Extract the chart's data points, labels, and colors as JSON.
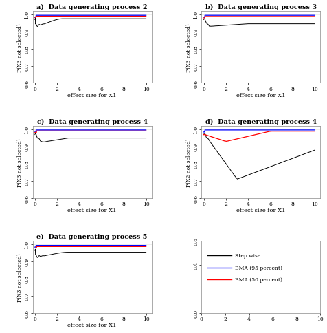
{
  "titles": [
    "a)  Data generating process 2",
    "b)  Data generating process 3",
    "c)  Data generating process 4",
    "d)  Data generating process 4",
    "e)  Data generating process 5"
  ],
  "ylabels": [
    "P(X3 not selected)",
    "P(X3 not selected)",
    "P(X3 not selected)",
    "P(X2 not selected)",
    "P(X3 not selected)"
  ],
  "xlabel": "effect size for X1",
  "ylim": [
    0.6,
    1.02
  ],
  "yticks": [
    0.6,
    0.7,
    0.8,
    0.9,
    1.0
  ],
  "ytick_labels": [
    "0.6",
    "0.7",
    "0.8",
    "0.9",
    "1.0"
  ],
  "xticks": [
    0,
    2,
    4,
    6,
    8,
    10
  ],
  "legend_labels": [
    "Step wise",
    "BMA (95 percent)",
    "BMA (50 percent)"
  ],
  "legend_colors": [
    "black",
    "blue",
    "red"
  ],
  "background_color": "#ffffff",
  "panel_background": "#ffffff",
  "leg_yticks": [
    0.0,
    0.4,
    0.6
  ],
  "leg_ytick_labels": [
    "0.0",
    "0.4",
    "0.6"
  ]
}
